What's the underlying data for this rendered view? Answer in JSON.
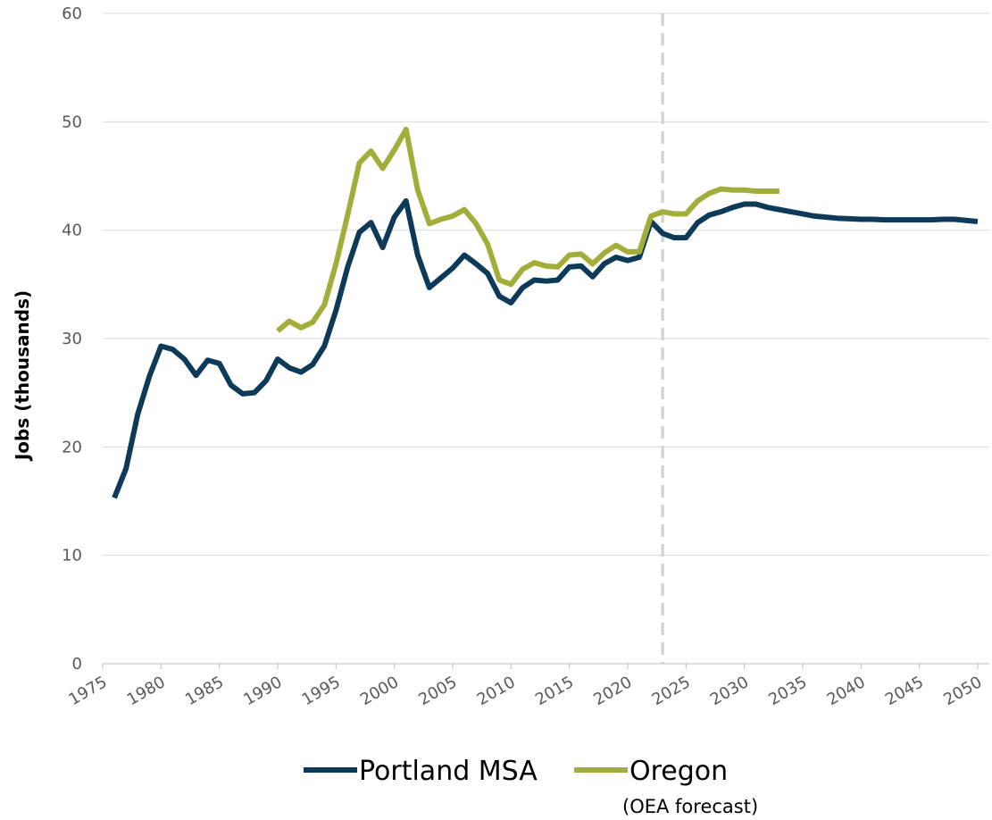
{
  "chart_data": {
    "type": "line",
    "y_label": "Jobs (thousands)",
    "x": [
      1976,
      1977,
      1978,
      1979,
      1980,
      1981,
      1982,
      1983,
      1984,
      1985,
      1986,
      1987,
      1988,
      1989,
      1990,
      1991,
      1992,
      1993,
      1994,
      1995,
      1996,
      1997,
      1998,
      1999,
      2000,
      2001,
      2002,
      2003,
      2004,
      2005,
      2006,
      2007,
      2008,
      2009,
      2010,
      2011,
      2012,
      2013,
      2014,
      2015,
      2016,
      2017,
      2018,
      2019,
      2020,
      2021,
      2022,
      2023,
      2024,
      2025,
      2026,
      2027,
      2028,
      2029,
      2030,
      2031,
      2032,
      2033,
      2034,
      2035,
      2036,
      2037,
      2038,
      2039,
      2040,
      2041,
      2042,
      2043,
      2044,
      2045,
      2046,
      2047,
      2048,
      2049,
      2050
    ],
    "series": [
      {
        "name": "Portland MSA",
        "color": "#0e3a5a",
        "values": [
          15.3,
          18.0,
          23.0,
          26.5,
          29.3,
          29.0,
          28.1,
          26.6,
          28.0,
          27.7,
          25.7,
          24.9,
          25.0,
          26.1,
          28.1,
          27.3,
          26.9,
          27.6,
          29.3,
          32.6,
          36.6,
          39.8,
          40.7,
          38.4,
          41.2,
          42.7,
          37.7,
          34.7,
          35.6,
          36.5,
          37.7,
          36.9,
          36.0,
          33.9,
          33.3,
          34.7,
          35.4,
          35.3,
          35.4,
          36.6,
          36.7,
          35.7,
          36.9,
          37.5,
          37.2,
          37.5,
          40.8,
          39.7,
          39.3,
          39.3,
          40.7,
          41.4,
          41.7,
          42.1,
          42.4,
          42.4,
          42.1,
          41.9,
          41.7,
          41.5,
          41.3,
          41.2,
          41.1,
          41.05,
          41.0,
          41.0,
          40.95,
          40.95,
          40.95,
          40.95,
          40.95,
          41.0,
          41.0,
          40.9,
          40.8
        ]
      },
      {
        "name": "Oregon",
        "color": "#a3ad3a",
        "values": [
          null,
          null,
          null,
          null,
          null,
          null,
          null,
          null,
          null,
          null,
          null,
          null,
          null,
          null,
          30.7,
          31.6,
          31.0,
          31.5,
          33.1,
          36.9,
          41.4,
          46.2,
          47.3,
          45.7,
          47.4,
          49.3,
          43.7,
          40.6,
          41.0,
          41.3,
          41.9,
          40.6,
          38.7,
          35.4,
          35.0,
          36.4,
          37.0,
          36.7,
          36.6,
          37.7,
          37.8,
          36.9,
          37.9,
          38.6,
          38.0,
          38.0,
          41.3,
          41.7,
          41.5,
          41.5,
          42.7,
          43.4,
          43.8,
          43.7,
          43.7,
          43.6,
          43.6,
          43.6,
          null,
          null,
          null,
          null,
          null,
          null,
          null,
          null,
          null,
          null,
          null,
          null,
          null,
          null,
          null,
          null,
          null
        ]
      }
    ],
    "legend_note": "(OEA forecast)",
    "vline": 2023,
    "xlim": [
      1975,
      2051
    ],
    "xticks": [
      1975,
      1980,
      1985,
      1990,
      1995,
      2000,
      2005,
      2010,
      2015,
      2020,
      2025,
      2030,
      2035,
      2040,
      2045,
      2050
    ],
    "ylim": [
      0,
      60
    ],
    "yticks": [
      0,
      10,
      20,
      30,
      40,
      50,
      60
    ],
    "grid": true,
    "legend": "bottom"
  }
}
